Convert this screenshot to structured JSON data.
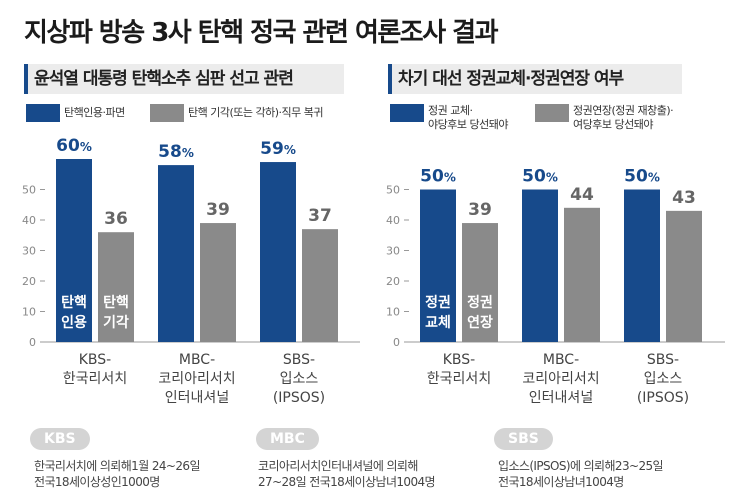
{
  "title": "지상파 방송 3사 탄핵 정국 관련 여론조사 결과",
  "colors": {
    "blue": "#174a8b",
    "gray": "#8a8a8a",
    "axis": "#999999"
  },
  "footer": {
    "badges": [
      "KBS",
      "MBC",
      "SBS"
    ],
    "texts": [
      "한국리서치에 의뢰해1월 24~26일\n전국18세이상성인1000명",
      "코리아리서치인터내셔널에 의뢰해\n27~28일 전국18세이상남녀1004명",
      "입소스(IPSOS)에 의뢰해23~25일\n전국18세이상남녀1004명"
    ]
  },
  "chart_data": [
    {
      "type": "bar",
      "title": "윤석열 대통령 탄핵소추 심판 선고 관련",
      "categories": [
        [
          "KBS-",
          "한국리서치"
        ],
        [
          "MBC-",
          "코리아리서치",
          "인터내셔널"
        ],
        [
          "SBS-",
          "입소스",
          "(IPSOS)"
        ]
      ],
      "series": [
        {
          "name": "탄핵인용·파면",
          "short": [
            "탄핵",
            "인용"
          ],
          "values": [
            60,
            58,
            59
          ],
          "percent_label": true
        },
        {
          "name": "탄핵 기각(또는 각하)·직무 복귀",
          "short": [
            "탄핵",
            "기각"
          ],
          "values": [
            36,
            39,
            37
          ],
          "percent_label": false
        }
      ],
      "yticks": [
        0,
        10,
        20,
        30,
        40,
        50
      ],
      "ylim": [
        0,
        60
      ]
    },
    {
      "type": "bar",
      "title": "차기 대선 정권교체·정권연장 여부",
      "categories": [
        [
          "KBS-",
          "한국리서치"
        ],
        [
          "MBC-",
          "코리아리서치",
          "인터내셔널"
        ],
        [
          "SBS-",
          "입소스",
          "(IPSOS)"
        ]
      ],
      "series": [
        {
          "name": "정권 교체·\n야당후보 당선돼야",
          "short": [
            "정권",
            "교체"
          ],
          "values": [
            50,
            50,
            50
          ],
          "percent_label": true
        },
        {
          "name": "정권연장(정권 재창출)·\n여당후보 당선돼야",
          "short": [
            "정권",
            "연장"
          ],
          "values": [
            39,
            44,
            43
          ],
          "percent_label": false
        }
      ],
      "yticks": [
        0,
        10,
        20,
        30,
        40,
        50
      ],
      "ylim": [
        0,
        60
      ]
    }
  ]
}
